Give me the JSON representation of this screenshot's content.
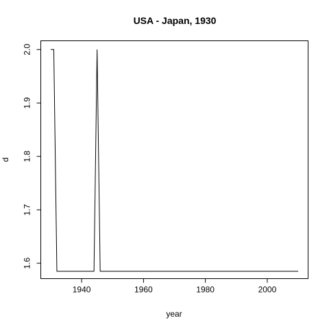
{
  "chart_data": {
    "type": "line",
    "title": "USA - Japan, 1930",
    "xlabel": "year",
    "ylabel": "d",
    "xlim": [
      1926.8,
      2013.2
    ],
    "ylim": [
      1.5712,
      2.0164
    ],
    "x_ticks": [
      1940,
      1960,
      1980,
      2000
    ],
    "y_ticks": [
      1.6,
      1.7,
      1.8,
      1.9,
      2.0
    ],
    "x_tick_labels": [
      "1940",
      "1960",
      "1980",
      "2000"
    ],
    "y_tick_labels": [
      "1.6",
      "1.7",
      "1.8",
      "1.9",
      "2.0"
    ],
    "grid": false,
    "series": [
      {
        "color": "#000000",
        "x": [
          1930,
          1931,
          1932,
          1933,
          1934,
          1935,
          1936,
          1937,
          1938,
          1939,
          1940,
          1941,
          1942,
          1943,
          1944,
          1945,
          1946,
          1947,
          1950,
          1960,
          1970,
          1980,
          1990,
          2000,
          2010
        ],
        "y": [
          2.0,
          2.0,
          1.585,
          1.585,
          1.585,
          1.585,
          1.585,
          1.585,
          1.585,
          1.585,
          1.585,
          1.585,
          1.585,
          1.585,
          1.585,
          2.0,
          1.585,
          1.585,
          1.585,
          1.585,
          1.585,
          1.585,
          1.585,
          1.585,
          1.585
        ]
      }
    ]
  }
}
